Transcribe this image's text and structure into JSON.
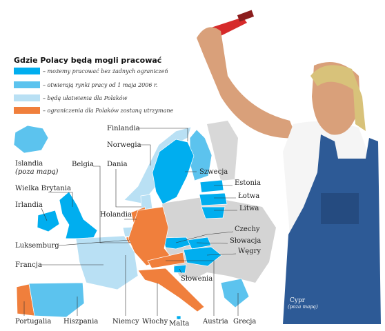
{
  "title": "Gdzie Polacy będą mogli pracować",
  "legend": [
    {
      "label": "– możemy pracować bez żadnych ograniczeń",
      "color": "#00aeef"
    },
    {
      "label": "– otwierają rynki pracy od 1 maja 2006 r.",
      "color": "#5cc3ee"
    },
    {
      "label": "– będą ułatwienia dla Polaków",
      "color": "#b9e0f4"
    },
    {
      "label": "– ograniczenia dla Polaków zostaną utrzymane",
      "color": "#f07f3c"
    }
  ],
  "countries": [
    {
      "name": "Finlandia",
      "color": "#5cc3ee"
    },
    {
      "name": "Norwegia",
      "color": "#b9e0f4"
    },
    {
      "name": "Szwecja",
      "color": "#00aeef"
    },
    {
      "name": "Estonia",
      "color": "#00aeef"
    },
    {
      "name": "Łotwa",
      "color": "#00aeef"
    },
    {
      "name": "Litwa",
      "color": "#00aeef"
    },
    {
      "name": "Dania",
      "color": "#b9e0f4"
    },
    {
      "name": "Belgia",
      "color": "#b9e0f4"
    },
    {
      "name": "Islandia",
      "note": "(poza mapą)",
      "color": "#5cc3ee"
    },
    {
      "name": "Wielka Brytania",
      "color": "#00aeef"
    },
    {
      "name": "Irlandia",
      "color": "#00aeef"
    },
    {
      "name": "Holandia",
      "color": "#f07f3c"
    },
    {
      "name": "Czechy",
      "color": "#00aeef"
    },
    {
      "name": "Słowacja",
      "color": "#00aeef"
    },
    {
      "name": "Węgry",
      "color": "#00aeef"
    },
    {
      "name": "Luksemburg",
      "color": "#f07f3c"
    },
    {
      "name": "Francja",
      "color": "#b9e0f4"
    },
    {
      "name": "Słowenia",
      "color": "#00aeef"
    },
    {
      "name": "Portugalia",
      "color": "#f07f3c"
    },
    {
      "name": "Hiszpania",
      "color": "#5cc3ee"
    },
    {
      "name": "Niemcy",
      "color": "#f07f3c"
    },
    {
      "name": "Włochy",
      "color": "#f07f3c"
    },
    {
      "name": "Malta",
      "color": "#00aeef"
    },
    {
      "name": "Austria",
      "color": "#f07f3c"
    },
    {
      "name": "Grecja",
      "color": "#5cc3ee"
    },
    {
      "name": "Cypr",
      "note": "(poza mapą)",
      "color": "#00aeef"
    }
  ]
}
